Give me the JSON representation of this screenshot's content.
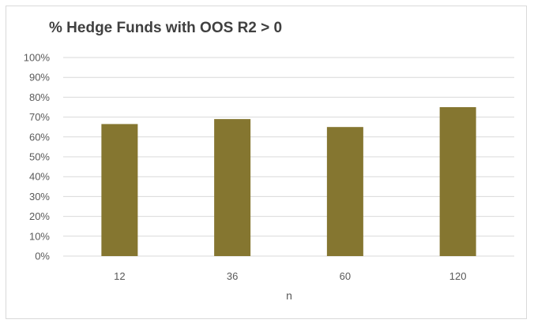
{
  "chart_data": {
    "type": "bar",
    "title": "% Hedge Funds with OOS R2 > 0",
    "xlabel": "n",
    "ylabel": "",
    "categories": [
      "12",
      "36",
      "60",
      "120"
    ],
    "values": [
      66.5,
      69,
      65,
      75
    ],
    "ylim": [
      0,
      100
    ],
    "yticks": [
      "0%",
      "10%",
      "20%",
      "30%",
      "40%",
      "50%",
      "60%",
      "70%",
      "80%",
      "90%",
      "100%"
    ],
    "bar_color": "#857630",
    "grid_color": "#d9d9d9",
    "grid": true,
    "legend": false
  }
}
